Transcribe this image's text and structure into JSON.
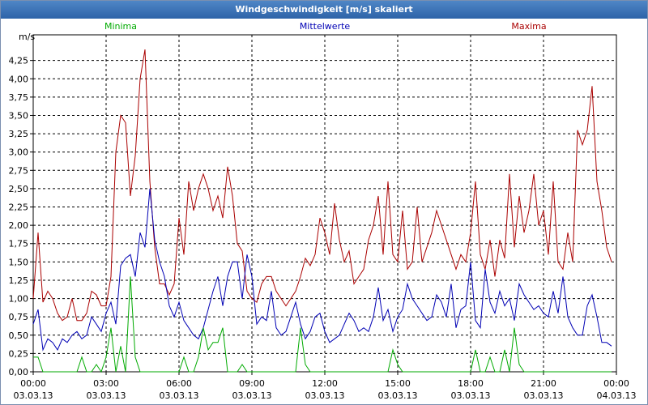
{
  "window": {
    "title": "Windgeschwindigkeit [m/s] skaliert"
  },
  "chart_data": {
    "type": "line",
    "title": "Windgeschwindigkeit [m/s] skaliert",
    "ylabel": "m/s",
    "xlabel": "",
    "ylim": [
      0,
      4.6
    ],
    "yticks": [
      "0,00",
      "0,25",
      "0,50",
      "0,75",
      "1,00",
      "1,25",
      "1,50",
      "1,75",
      "2,00",
      "2,25",
      "2,50",
      "2,75",
      "3,00",
      "3,25",
      "3,50",
      "3,75",
      "4,00",
      "4,25"
    ],
    "xticks": [
      {
        "time": "00:00",
        "date": "03.03.13"
      },
      {
        "time": "03:00",
        "date": "03.03.13"
      },
      {
        "time": "06:00",
        "date": "03.03.13"
      },
      {
        "time": "09:00",
        "date": "03.03.13"
      },
      {
        "time": "12:00",
        "date": "03.03.13"
      },
      {
        "time": "15:00",
        "date": "03.03.13"
      },
      {
        "time": "18:00",
        "date": "03.03.13"
      },
      {
        "time": "21:00",
        "date": "03.03.13"
      },
      {
        "time": "00:00",
        "date": "04.03.13"
      }
    ],
    "grid": true,
    "legend": [
      "Minima",
      "Mittelwerte",
      "Maxima"
    ],
    "x_hours": [
      0.0,
      0.2,
      0.4,
      0.6,
      0.8,
      1.0,
      1.2,
      1.4,
      1.6,
      1.8,
      2.0,
      2.2,
      2.4,
      2.6,
      2.8,
      3.0,
      3.2,
      3.4,
      3.6,
      3.8,
      4.0,
      4.2,
      4.4,
      4.6,
      4.8,
      5.0,
      5.2,
      5.4,
      5.6,
      5.8,
      6.0,
      6.2,
      6.4,
      6.6,
      6.8,
      7.0,
      7.2,
      7.4,
      7.6,
      7.8,
      8.0,
      8.2,
      8.4,
      8.6,
      8.8,
      9.0,
      9.2,
      9.4,
      9.6,
      9.8,
      10.0,
      10.2,
      10.4,
      10.6,
      10.8,
      11.0,
      11.2,
      11.4,
      11.6,
      11.8,
      12.0,
      12.2,
      12.4,
      12.6,
      12.8,
      13.0,
      13.2,
      13.4,
      13.6,
      13.8,
      14.0,
      14.2,
      14.4,
      14.6,
      14.8,
      15.0,
      15.2,
      15.4,
      15.6,
      15.8,
      16.0,
      16.2,
      16.4,
      16.6,
      16.8,
      17.0,
      17.2,
      17.4,
      17.6,
      17.8,
      18.0,
      18.2,
      18.4,
      18.6,
      18.8,
      19.0,
      19.2,
      19.4,
      19.6,
      19.8,
      20.0,
      20.2,
      20.4,
      20.6,
      20.8,
      21.0,
      21.2,
      21.4,
      21.6,
      21.8,
      22.0,
      22.2,
      22.4,
      22.6,
      22.8,
      23.0,
      23.2,
      23.4,
      23.6,
      23.8
    ],
    "series": [
      {
        "name": "Minima",
        "color": "#00aa00",
        "values": [
          0.2,
          0.2,
          0.0,
          0.0,
          0.0,
          0.0,
          0.0,
          0.0,
          0.0,
          0.0,
          0.2,
          0.0,
          0.0,
          0.1,
          0.0,
          0.2,
          0.6,
          0.0,
          0.35,
          0.0,
          1.3,
          0.2,
          0.0,
          0.0,
          0.0,
          0.0,
          0.0,
          0.0,
          0.0,
          0.0,
          0.0,
          0.2,
          0.0,
          0.0,
          0.2,
          0.6,
          0.3,
          0.4,
          0.4,
          0.6,
          0.0,
          0.0,
          0.0,
          0.1,
          0.0,
          0.0,
          0.0,
          0.0,
          0.0,
          0.0,
          0.0,
          0.0,
          0.0,
          0.0,
          0.0,
          0.6,
          0.1,
          0.0,
          0.0,
          0.0,
          0.0,
          0.0,
          0.0,
          0.0,
          0.0,
          0.0,
          0.0,
          0.0,
          0.0,
          0.0,
          0.0,
          0.0,
          0.0,
          0.0,
          0.3,
          0.1,
          0.0,
          0.0,
          0.0,
          0.0,
          0.0,
          0.0,
          0.0,
          0.0,
          0.0,
          0.0,
          0.0,
          0.0,
          0.0,
          0.0,
          0.0,
          0.3,
          0.0,
          0.0,
          0.2,
          0.0,
          0.0,
          0.3,
          0.0,
          0.6,
          0.1,
          0.0,
          0.0,
          0.0,
          0.0,
          0.0,
          0.0,
          0.0,
          0.0,
          0.0,
          0.0,
          0.0,
          0.0,
          0.0,
          0.0,
          0.0,
          0.0,
          0.0,
          0.0,
          0.0
        ]
      },
      {
        "name": "Mittelwerte",
        "color": "#0000b4",
        "values": [
          0.65,
          0.85,
          0.3,
          0.45,
          0.4,
          0.3,
          0.45,
          0.4,
          0.5,
          0.55,
          0.45,
          0.5,
          0.75,
          0.65,
          0.55,
          0.8,
          0.95,
          0.65,
          1.45,
          1.55,
          1.6,
          1.3,
          1.9,
          1.7,
          2.5,
          1.8,
          1.5,
          1.3,
          0.9,
          0.75,
          0.95,
          0.7,
          0.6,
          0.5,
          0.45,
          0.6,
          0.85,
          1.1,
          1.3,
          0.9,
          1.3,
          1.5,
          1.5,
          1.0,
          1.6,
          1.3,
          0.65,
          0.75,
          0.7,
          1.1,
          0.6,
          0.5,
          0.55,
          0.75,
          0.95,
          0.65,
          0.45,
          0.55,
          0.75,
          0.8,
          0.55,
          0.4,
          0.45,
          0.5,
          0.65,
          0.8,
          0.7,
          0.55,
          0.6,
          0.55,
          0.75,
          1.15,
          0.7,
          0.85,
          0.55,
          0.75,
          0.85,
          1.2,
          1.0,
          0.9,
          0.8,
          0.7,
          0.75,
          1.05,
          0.95,
          0.75,
          1.2,
          0.6,
          0.85,
          0.9,
          1.5,
          0.7,
          0.6,
          1.4,
          0.95,
          0.8,
          1.1,
          0.9,
          1.0,
          0.7,
          1.2,
          1.05,
          0.95,
          0.85,
          0.9,
          0.8,
          0.75,
          1.1,
          0.8,
          1.3,
          0.75,
          0.6,
          0.5,
          0.5,
          0.9,
          1.05,
          0.75,
          0.4,
          0.4,
          0.35
        ]
      },
      {
        "name": "Maxima",
        "color": "#aa0000",
        "values": [
          1.0,
          1.9,
          0.95,
          1.1,
          1.0,
          0.8,
          0.7,
          0.75,
          1.0,
          0.7,
          0.7,
          0.8,
          1.1,
          1.05,
          0.9,
          0.9,
          1.3,
          3.0,
          3.5,
          3.4,
          2.4,
          2.95,
          4.0,
          4.4,
          2.6,
          1.7,
          1.2,
          1.2,
          1.05,
          1.2,
          2.1,
          1.6,
          2.6,
          2.2,
          2.5,
          2.7,
          2.5,
          2.2,
          2.4,
          2.1,
          2.8,
          2.4,
          1.75,
          1.65,
          1.1,
          1.0,
          0.95,
          1.2,
          1.3,
          1.3,
          1.1,
          1.0,
          0.9,
          1.0,
          1.1,
          1.3,
          1.55,
          1.45,
          1.6,
          2.1,
          1.9,
          1.6,
          2.3,
          1.8,
          1.5,
          1.65,
          1.2,
          1.3,
          1.4,
          1.8,
          2.0,
          2.4,
          1.6,
          2.6,
          1.6,
          1.5,
          2.2,
          1.4,
          1.5,
          2.25,
          1.5,
          1.7,
          1.9,
          2.2,
          2.0,
          1.8,
          1.6,
          1.4,
          1.6,
          1.5,
          1.9,
          2.6,
          1.6,
          1.4,
          1.8,
          1.3,
          1.8,
          1.55,
          2.7,
          1.7,
          2.4,
          1.9,
          2.2,
          2.7,
          2.0,
          2.2,
          1.6,
          2.6,
          1.5,
          1.4,
          1.9,
          1.5,
          3.3,
          3.1,
          3.3,
          3.9,
          2.6,
          2.2,
          1.7,
          1.5
        ]
      }
    ]
  }
}
